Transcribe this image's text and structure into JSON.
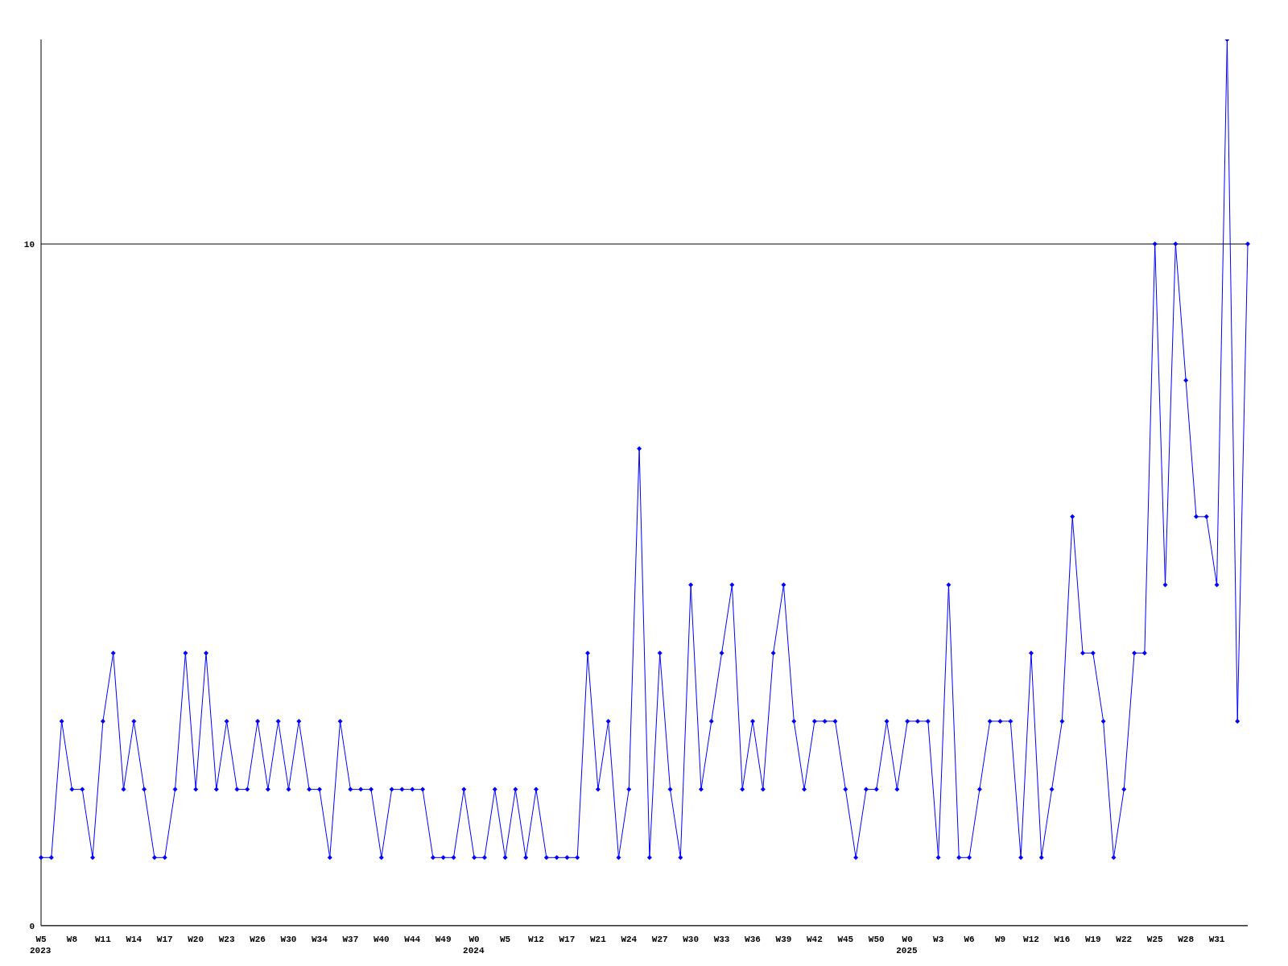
{
  "chart_data": {
    "type": "line",
    "categories": [
      "W5\n2023",
      null,
      null,
      "W8",
      null,
      null,
      "W11",
      null,
      null,
      "W14",
      null,
      null,
      "W17",
      null,
      null,
      "W20",
      null,
      null,
      "W23",
      null,
      null,
      "W26",
      null,
      null,
      "W30",
      null,
      null,
      "W34",
      null,
      null,
      "W37",
      null,
      null,
      "W40",
      null,
      null,
      "W44",
      null,
      null,
      "W49",
      null,
      null,
      "W0\n2024",
      null,
      null,
      "W5",
      null,
      null,
      "W12",
      null,
      null,
      "W17",
      null,
      null,
      "W21",
      null,
      null,
      "W24",
      null,
      null,
      "W27",
      null,
      null,
      "W30",
      null,
      null,
      "W33",
      null,
      null,
      "W36",
      null,
      null,
      "W39",
      null,
      null,
      "W42",
      null,
      null,
      "W45",
      null,
      null,
      "W50",
      null,
      null,
      "W0\n2025",
      null,
      null,
      "W3",
      null,
      null,
      "W6",
      null,
      null,
      "W9",
      null,
      null,
      "W12",
      null,
      null,
      "W16",
      null,
      null,
      "W19",
      null,
      null,
      "W22",
      null,
      null,
      "W25",
      null,
      null,
      "W28",
      null,
      null,
      "W31",
      null,
      null,
      null
    ],
    "series": [
      {
        "color": "#0000ff",
        "values": [
          1,
          1,
          3,
          2,
          2,
          1,
          3,
          4,
          2,
          3,
          2,
          1,
          1,
          2,
          4,
          2,
          4,
          2,
          3,
          2,
          2,
          3,
          2,
          3,
          2,
          3,
          2,
          2,
          1,
          3,
          2,
          2,
          2,
          1,
          2,
          2,
          2,
          2,
          1,
          1,
          1,
          2,
          1,
          1,
          2,
          1,
          2,
          1,
          2,
          1,
          1,
          1,
          1,
          4,
          2,
          3,
          1,
          2,
          7,
          1,
          4,
          2,
          1,
          5,
          2,
          3,
          4,
          5,
          2,
          3,
          2,
          4,
          5,
          3,
          2,
          3,
          3,
          3,
          2,
          1,
          2,
          2,
          3,
          2,
          3,
          3,
          3,
          1,
          5,
          1,
          1,
          2,
          3,
          3,
          3,
          1,
          4,
          1,
          2,
          3,
          6,
          4,
          4,
          3,
          1,
          2,
          4,
          4,
          10,
          5,
          10,
          8,
          6,
          6,
          5,
          13,
          3,
          10
        ]
      }
    ],
    "ylim": [
      0,
      13
    ],
    "yticks": [
      0,
      10
    ],
    "grid": "y",
    "marker": "diamond",
    "line_style": "solid"
  }
}
